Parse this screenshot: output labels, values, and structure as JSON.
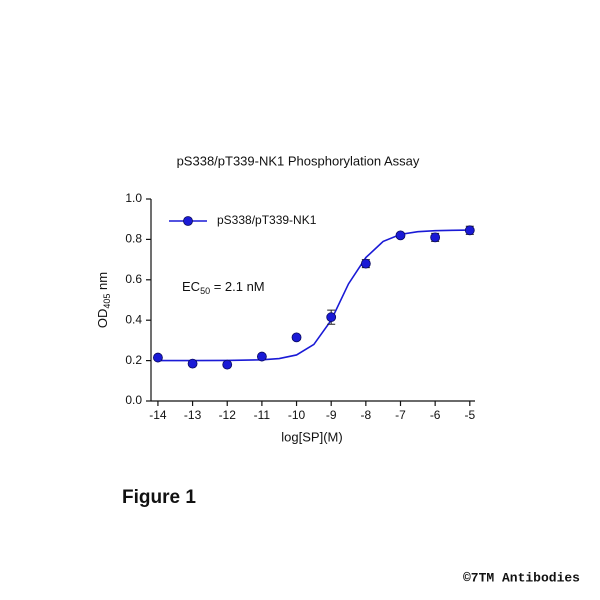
{
  "chart_data": {
    "type": "scatter",
    "title": "pS338/pT339-NK1 Phosphorylation Assay",
    "xlabel": "log[SP](M)",
    "ylabel": {
      "text": "OD",
      "sub": "405",
      "suffix": " nm"
    },
    "annotation": {
      "text": "EC",
      "sub": "50",
      "suffix": " = 2.1 nM"
    },
    "xlim": [
      -14.2,
      -4.85
    ],
    "ylim": [
      0,
      1
    ],
    "xticks": [
      -14,
      -13,
      -12,
      -11,
      -10,
      -9,
      -8,
      -7,
      -6,
      -5
    ],
    "yticks": [
      {
        "value": 0,
        "label": "0.0"
      },
      0.2,
      0.4,
      0.6,
      0.8,
      {
        "value": 1,
        "label": "1.0"
      }
    ],
    "legend": "upper left",
    "series": [
      {
        "name": "pS338/pT339-NK1",
        "color": "#1a1ad6",
        "x": [
          -14,
          -13,
          -12,
          -11,
          -10,
          -9,
          -8,
          -7,
          -6,
          -5
        ],
        "values": [
          0.215,
          0.185,
          0.18,
          0.22,
          0.315,
          0.415,
          0.68,
          0.82,
          0.81,
          0.845
        ],
        "errors": [
          0.008,
          0.008,
          0.008,
          0.008,
          0.01,
          0.035,
          0.02,
          0.01,
          0.02,
          0.02
        ]
      }
    ],
    "fit": {
      "type": "line",
      "color": "#1a1ad6",
      "x": [
        -14,
        -13,
        -12,
        -11,
        -10.5,
        -10,
        -9.5,
        -9,
        -8.5,
        -8,
        -7.5,
        -7,
        -6.5,
        -6,
        -5.5,
        -5
      ],
      "values": [
        0.2,
        0.2,
        0.201,
        0.204,
        0.21,
        0.228,
        0.28,
        0.4,
        0.58,
        0.71,
        0.79,
        0.825,
        0.838,
        0.843,
        0.845,
        0.846
      ]
    }
  },
  "figure_label": "Figure 1",
  "copyright": "©7TM Antibodies"
}
